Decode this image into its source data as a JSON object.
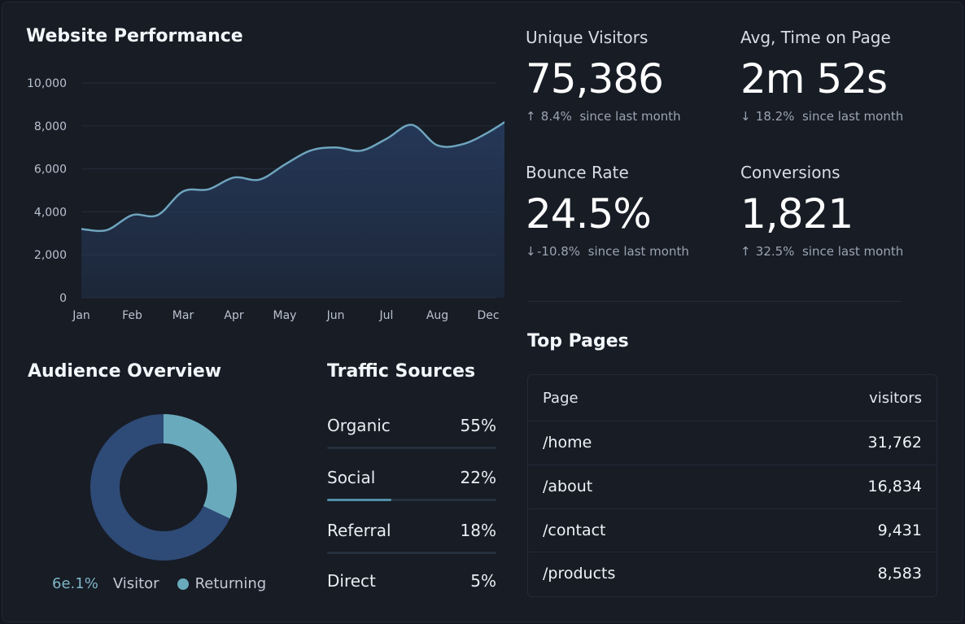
{
  "performance": {
    "title": "Website Performance"
  },
  "kpis": [
    {
      "label": "Unique Visitors",
      "value": "75,386",
      "arrow": "↑",
      "delta": "8.4%",
      "since": "since last month"
    },
    {
      "label": "Avg, Time on Page",
      "value": "2m 52s",
      "arrow": "↓",
      "delta": "18.2%",
      "since": "since last month"
    },
    {
      "label": "Bounce Rate",
      "value": "24.5%",
      "arrow": "↓",
      "delta": "-10.8%",
      "since": "since last month"
    },
    {
      "label": "Conversions",
      "value": "1,821",
      "arrow": "↑",
      "delta": "32.5%",
      "since": "since last month"
    }
  ],
  "top_pages": {
    "title": "Top Pages",
    "header": {
      "page": "Page",
      "visitors": "visitors"
    },
    "rows": [
      {
        "page": "/home",
        "visitors": "31,762"
      },
      {
        "page": "/about",
        "visitors": "16,834"
      },
      {
        "page": "/contact",
        "visitors": "9,431"
      },
      {
        "page": "/products",
        "visitors": "8,583"
      }
    ]
  },
  "audience": {
    "title": "Audience Overview",
    "percent_label": "6e.1%",
    "visitor_label": "Visitor",
    "returning_label": "Returning"
  },
  "traffic": {
    "title": "Traffic Sources",
    "sources": [
      {
        "name": "Organic",
        "pct": "55%",
        "fill": 0.0
      },
      {
        "name": "Social",
        "pct": "22%",
        "fill": 0.38
      },
      {
        "name": "Referral",
        "pct": "18%",
        "fill": 0.0
      },
      {
        "name": "Direct",
        "pct": "5%",
        "fill": 0.0
      }
    ]
  },
  "colors": {
    "line": "#6ea4bd",
    "area": "#263a5c",
    "donut_primary": "#2e4a76",
    "donut_secondary": "#6aaabd"
  },
  "chart_data": [
    {
      "type": "area",
      "title": "Website Performance",
      "categories": [
        "Jan",
        "Feb",
        "Mar",
        "Apr",
        "May",
        "Jun",
        "Jul",
        "Aug",
        "Dec"
      ],
      "x": [
        0,
        0.5,
        1,
        1.5,
        2,
        2.5,
        3,
        3.5,
        4,
        4.5,
        5,
        5.5,
        6,
        6.5,
        7,
        7.5,
        8,
        8.5
      ],
      "values": [
        3200,
        3150,
        3850,
        3850,
        4950,
        5050,
        5600,
        5500,
        6200,
        6850,
        7000,
        6850,
        7400,
        8050,
        7100,
        7150,
        7700,
        8450
      ],
      "yticks": [
        0,
        2000,
        4000,
        6000,
        8000,
        10000
      ],
      "ytick_labels": [
        "0",
        "2,000",
        "4,000",
        "6,000",
        "8,000",
        "10,000"
      ],
      "ylim": [
        0,
        10000
      ],
      "grid": true
    },
    {
      "type": "pie",
      "title": "Audience Overview",
      "labels": [
        "Visitor",
        "Returning"
      ],
      "values": [
        68,
        32
      ]
    }
  ]
}
